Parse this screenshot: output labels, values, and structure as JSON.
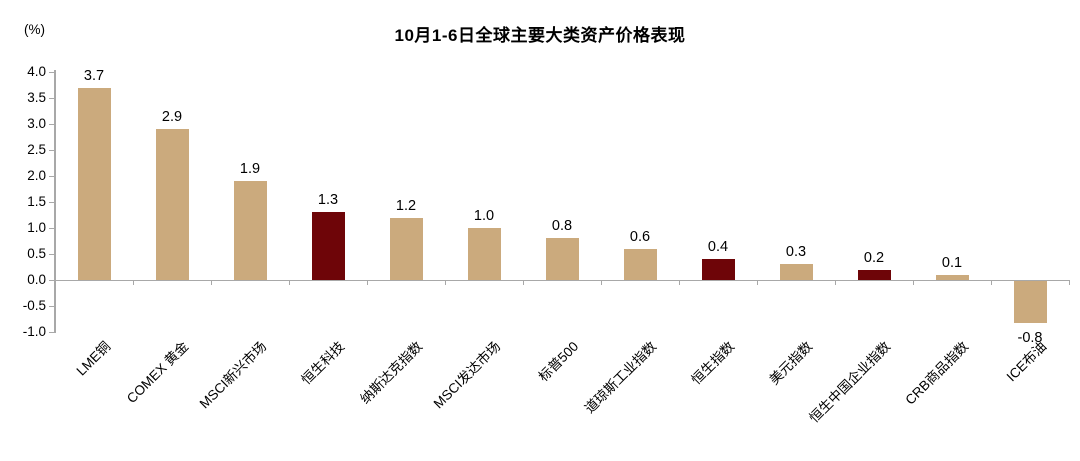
{
  "title": "10月1-6日全球主要大类资产价格表现",
  "y_axis_unit": "(%)",
  "chart_data": {
    "type": "bar",
    "title": "10月1-6日全球主要大类资产价格表现",
    "xlabel": "",
    "ylabel": "(%)",
    "ylim": [
      -1.0,
      4.0
    ],
    "ytick_step": 0.5,
    "ytick_labels": [
      "4.0",
      "3.5",
      "3.0",
      "2.5",
      "2.0",
      "1.5",
      "1.0",
      "0.5",
      "0.0",
      "-0.5",
      "-1.0"
    ],
    "grid": false,
    "categories": [
      "LME铜",
      "COMEX 黄金",
      "MSCI新兴市场",
      "恒生科技",
      "纳斯达克指数",
      "MSCI发达市场",
      "标普500",
      "道琼斯工业指数",
      "恒生指数",
      "美元指数",
      "恒生中国企业指数",
      "CRB商品指数",
      "ICE布油"
    ],
    "values": [
      3.7,
      2.9,
      1.9,
      1.3,
      1.2,
      1.0,
      0.8,
      0.6,
      0.4,
      0.3,
      0.2,
      0.1,
      -0.8
    ],
    "value_labels": [
      "3.7",
      "2.9",
      "1.9",
      "1.3",
      "1.2",
      "1.0",
      "0.8",
      "0.6",
      "0.4",
      "0.3",
      "0.2",
      "0.1",
      "-0.8"
    ],
    "highlight_indices": [
      3,
      8,
      10
    ],
    "colors": {
      "bar": "#CBAA7D",
      "highlight": "#6E0508",
      "axis": "#A8A8A8",
      "text": "#000000"
    }
  }
}
